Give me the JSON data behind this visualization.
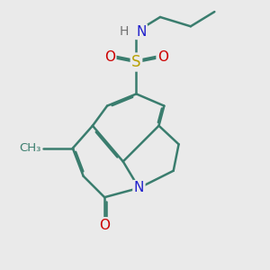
{
  "bg_color": "#eaeaea",
  "bc": "#3a7d6e",
  "bw": 1.8,
  "dbo": 0.055,
  "fs": 11,
  "atom_colors": {
    "N": "#2020cc",
    "H": "#707070",
    "S": "#b8a000",
    "O": "#cc0000"
  }
}
